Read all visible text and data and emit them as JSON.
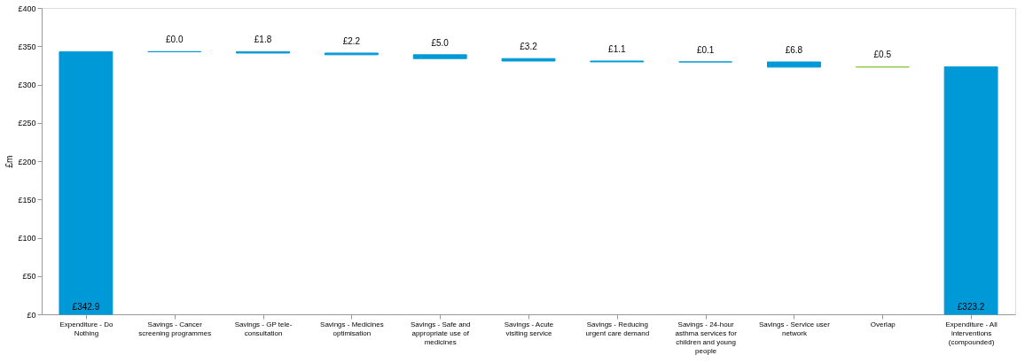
{
  "chart_data": {
    "type": "bar",
    "ylabel": "£m",
    "categories": [
      "Expenditure - Do Nothing",
      "Savings - Cancer screening programmes",
      "Savings - GP tele-consultation",
      "Savings - Medicines optimisation",
      "Savings - Safe and appropriate use of medicines",
      "Savings - Acute visiting service",
      "Savings - Reducing urgent care demand",
      "Savings - 24-hour asthma services for children and young people",
      "Savings - Service user network",
      "Overlap",
      "Expenditure - All interventions (compounded)"
    ],
    "values": [
      342.9,
      0.0,
      1.8,
      2.2,
      5.0,
      3.2,
      1.1,
      0.1,
      6.8,
      0.5,
      323.2
    ],
    "base": [
      0,
      342.9,
      341.1,
      338.9,
      333.9,
      330.7,
      329.6,
      329.5,
      322.7,
      322.7,
      0
    ],
    "colors": [
      "#0099d8",
      "#0099d8",
      "#0099d8",
      "#0099d8",
      "#0099d8",
      "#0099d8",
      "#0099d8",
      "#0099d8",
      "#0099d8",
      "#8cc63f",
      "#0099d8"
    ],
    "value_labels": [
      "£342.9",
      "£0.0",
      "£1.8",
      "£2.2",
      "£5.0",
      "£3.2",
      "£1.1",
      "£0.1",
      "£6.8",
      "£0.5",
      "£323.2"
    ],
    "ylim": [
      0,
      400
    ],
    "yticks": [
      {
        "value": 0,
        "label": "£0"
      },
      {
        "value": 50,
        "label": "£50"
      },
      {
        "value": 100,
        "label": "£100"
      },
      {
        "value": 150,
        "label": "£150"
      },
      {
        "value": 200,
        "label": "£200"
      },
      {
        "value": 250,
        "label": "£250"
      },
      {
        "value": 300,
        "label": "£300"
      },
      {
        "value": 350,
        "label": "£350"
      },
      {
        "value": 400,
        "label": "£400"
      }
    ],
    "grid": false
  }
}
